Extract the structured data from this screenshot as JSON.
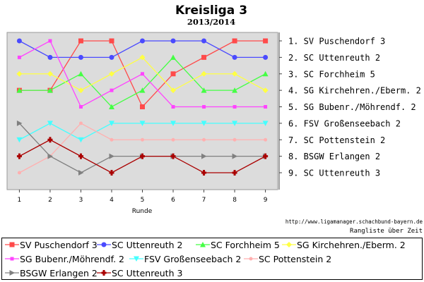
{
  "title": "Kreisliga 3",
  "subtitle": "2013/2014",
  "source_url": "http://www.ligamanager.schachbund-bayern.de",
  "footer_caption": "Rangliste über Zeit",
  "chart_data": {
    "type": "line",
    "title": "Kreisliga 3",
    "subtitle": "2013/2014",
    "xlabel": "Runde",
    "ylabel": "",
    "x": [
      1,
      2,
      3,
      4,
      5,
      6,
      7,
      8,
      9
    ],
    "xlim": [
      0.6,
      9.4
    ],
    "ylim": [
      1,
      9
    ],
    "y_inverted": true,
    "grid": false,
    "legend_position": "bottom",
    "rank_labels": [
      "1. SV Puschendorf 3",
      "2. SC Uttenreuth 2",
      "3. SC Forchheim 5",
      "4. SG Kirchehren./Eberm. 2",
      "5. SG Bubenr./Möhrendf. 2",
      "6. FSV Großenseebach 2",
      "7. SC Pottenstein 2",
      "8. BSGW Erlangen 2",
      "9. SC Uttenreuth 3"
    ],
    "series": [
      {
        "name": "SV Puschendorf 3",
        "color": "#ff4a4a",
        "marker": "square",
        "values": [
          4,
          4,
          1,
          1,
          5,
          3,
          2,
          1,
          1
        ]
      },
      {
        "name": "SC Uttenreuth 2",
        "color": "#4a4aff",
        "marker": "circle",
        "values": [
          1,
          2,
          2,
          2,
          1,
          1,
          1,
          2,
          2
        ]
      },
      {
        "name": "SC Forchheim 5",
        "color": "#44ff44",
        "marker": "triangle-up",
        "values": [
          4,
          4,
          3,
          5,
          4,
          2,
          4,
          4,
          3
        ]
      },
      {
        "name": "SG Kirchehren./Eberm. 2",
        "color": "#ffff44",
        "marker": "diamond",
        "values": [
          3,
          3,
          4,
          3,
          2,
          4,
          3,
          3,
          4
        ]
      },
      {
        "name": "SG Bubenr./Möhrendf. 2",
        "color": "#ff44ff",
        "marker": "square-small",
        "values": [
          2,
          1,
          5,
          4,
          3,
          5,
          5,
          5,
          5
        ]
      },
      {
        "name": "FSV Großenseebach 2",
        "color": "#44ffff",
        "marker": "triangle-down",
        "values": [
          7,
          6,
          7,
          6,
          6,
          6,
          6,
          6,
          6
        ]
      },
      {
        "name": "SC Pottenstein 2",
        "color": "#ffb0b0",
        "marker": "circle-small",
        "values": [
          9,
          8,
          6,
          7,
          7,
          7,
          7,
          7,
          7
        ]
      },
      {
        "name": "BSGW Erlangen 2",
        "color": "#808080",
        "marker": "triangle-right",
        "values": [
          6,
          8,
          9,
          8,
          8,
          8,
          8,
          8,
          8
        ]
      },
      {
        "name": "SC Uttenreuth 3",
        "color": "#aa0000",
        "marker": "cross",
        "values": [
          8,
          7,
          8,
          9,
          8,
          8,
          9,
          9,
          8
        ]
      }
    ]
  }
}
